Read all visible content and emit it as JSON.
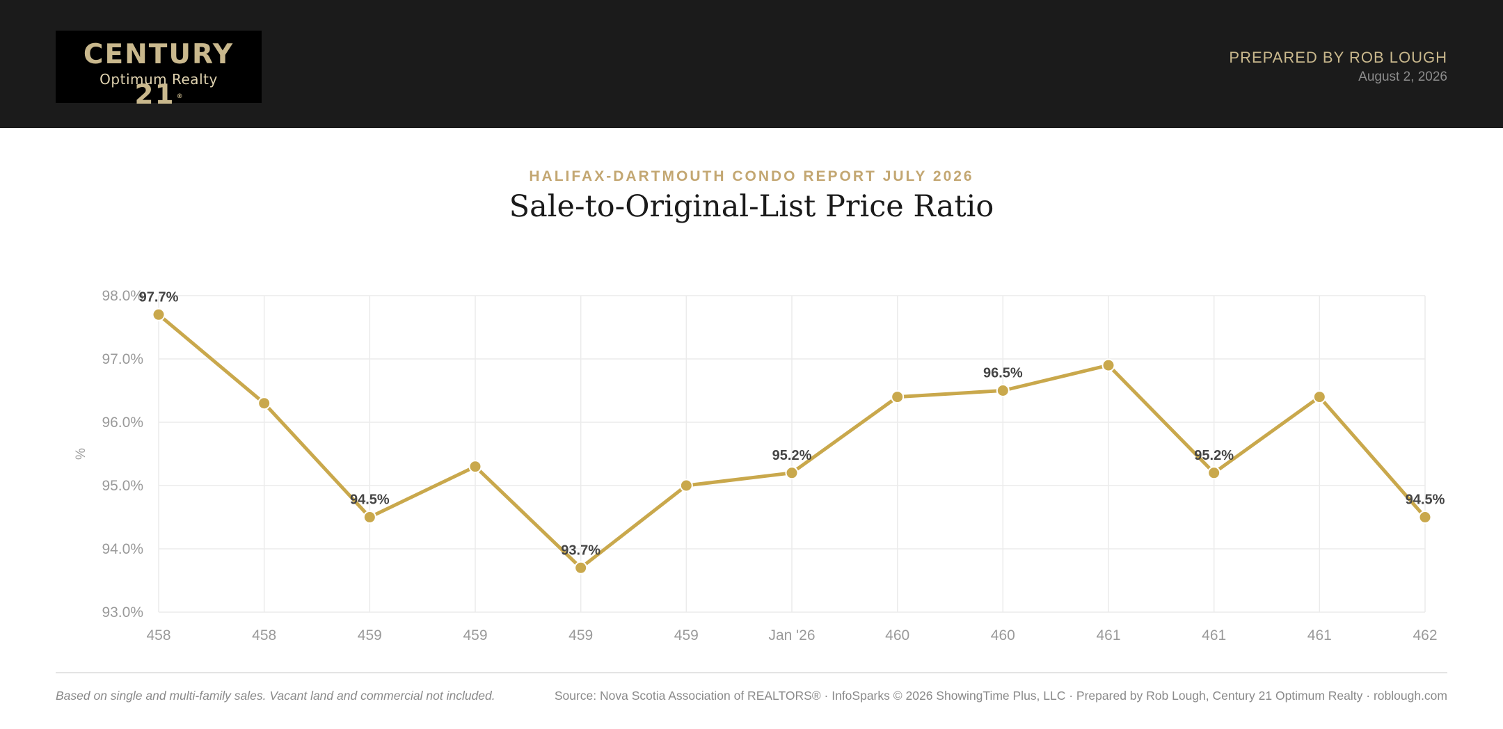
{
  "header": {
    "logo_main": "CENTURY 21",
    "logo_registered": "®",
    "logo_sub": "Optimum Realty",
    "prepared_by": "PREPARED BY ROB LOUGH",
    "date": "August 2, 2026"
  },
  "report": {
    "subtitle": "HALIFAX-DARTMOUTH CONDO REPORT JULY 2026",
    "title": "Sale-to-Original-List Price Ratio"
  },
  "footer": {
    "note": "Based on single and multi-family sales. Vacant land and commercial not included.",
    "source": "Source: Nova Scotia Association of REALTORS® · InfoSparks © 2026 ShowingTime Plus, LLC · Prepared by Rob Lough, Century 21 Optimum Realty · roblough.com"
  },
  "colors": {
    "header_bg": "#1b1b1b",
    "accent_gold": "#c9a84c",
    "subtitle_gold": "#c3a772"
  },
  "chart_data": {
    "type": "line",
    "ylabel": "%",
    "ylim": [
      93.0,
      98.0
    ],
    "y_ticks": [
      "93.0%",
      "94.0%",
      "95.0%",
      "96.0%",
      "97.0%",
      "98.0%"
    ],
    "y_tick_values": [
      93.0,
      94.0,
      95.0,
      96.0,
      97.0,
      98.0
    ],
    "categories": [
      "458",
      "458",
      "459",
      "459",
      "459",
      "459",
      "Jan '26",
      "460",
      "460",
      "461",
      "461",
      "461",
      "462"
    ],
    "series": [
      {
        "values": [
          97.7,
          96.3,
          94.5,
          95.3,
          93.7,
          95.0,
          95.2,
          96.4,
          96.5,
          96.9,
          95.2,
          96.4,
          94.5
        ]
      }
    ],
    "data_labels": [
      "97.7%",
      "",
      "94.5%",
      "",
      "93.7%",
      "",
      "95.2%",
      "",
      "96.5%",
      "",
      "95.2%",
      "",
      "94.5%"
    ],
    "grid": true,
    "line_color": "#c9a84c"
  }
}
